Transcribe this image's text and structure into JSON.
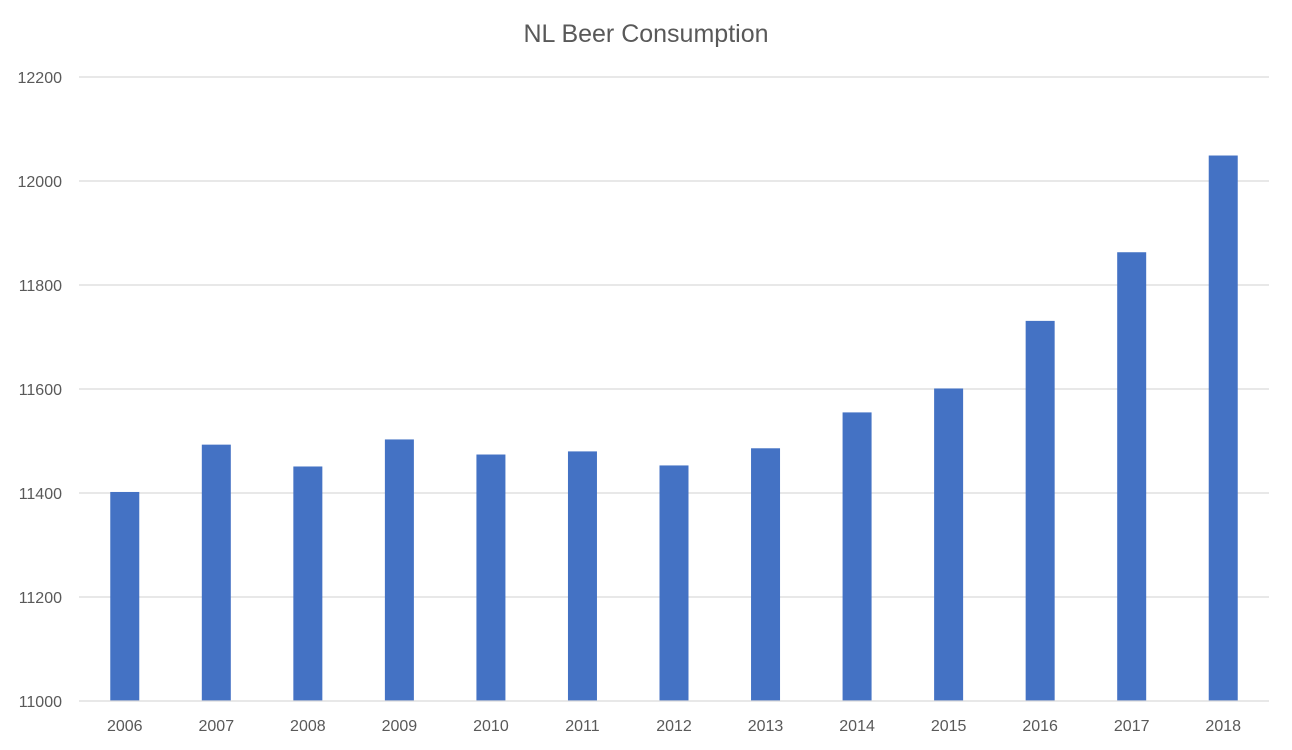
{
  "chart_data": {
    "type": "bar",
    "title": "NL Beer Consumption",
    "xlabel": "",
    "ylabel": "",
    "categories": [
      "2006",
      "2007",
      "2008",
      "2009",
      "2010",
      "2011",
      "2012",
      "2013",
      "2014",
      "2015",
      "2016",
      "2017",
      "2018"
    ],
    "series": [
      {
        "name": "Beer Consumption",
        "values": [
          11402,
          11493,
          11451,
          11503,
          11474,
          11480,
          11453,
          11486,
          11555,
          11601,
          11731,
          11863,
          12049
        ],
        "color": "#4472c4"
      }
    ],
    "ylim": [
      11000,
      12200
    ],
    "yticks": [
      11000,
      11200,
      11400,
      11600,
      11800,
      12000,
      12200
    ],
    "grid": true,
    "legend": "none"
  }
}
